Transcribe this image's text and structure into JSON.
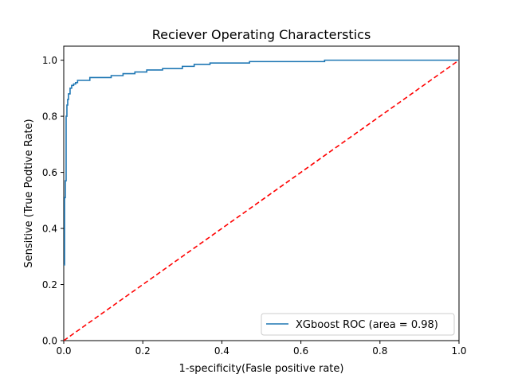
{
  "chart_data": {
    "type": "line",
    "title": "Reciever Operating Characterstics",
    "xlabel": "1-specificity(Fasle positive rate)",
    "ylabel": "Sensitive (True Podtive Rate)",
    "xlim": [
      0.0,
      1.0
    ],
    "ylim": [
      0.0,
      1.05
    ],
    "xticks": [
      0.0,
      0.2,
      0.4,
      0.6,
      0.8,
      1.0
    ],
    "yticks": [
      0.0,
      0.2,
      0.4,
      0.6,
      0.8,
      1.0
    ],
    "xtick_labels": [
      "0.0",
      "0.2",
      "0.4",
      "0.6",
      "0.8",
      "1.0"
    ],
    "ytick_labels": [
      "0.0",
      "0.2",
      "0.4",
      "0.6",
      "0.8",
      "1.0"
    ],
    "grid": false,
    "legend_position": "lower right",
    "series": [
      {
        "name": "XGboost ROC (area = 0.98)",
        "color": "#1f77b4",
        "style": "solid",
        "step": true,
        "x": [
          0.0,
          0.002,
          0.002,
          0.004,
          0.004,
          0.006,
          0.006,
          0.008,
          0.008,
          0.01,
          0.01,
          0.012,
          0.012,
          0.016,
          0.016,
          0.02,
          0.02,
          0.025,
          0.025,
          0.03,
          0.03,
          0.035,
          0.035,
          0.066,
          0.066,
          0.12,
          0.12,
          0.15,
          0.15,
          0.18,
          0.18,
          0.21,
          0.21,
          0.25,
          0.25,
          0.3,
          0.3,
          0.33,
          0.33,
          0.37,
          0.37,
          0.47,
          0.47,
          0.66,
          0.66,
          1.0
        ],
        "y": [
          0.27,
          0.27,
          0.51,
          0.51,
          0.57,
          0.57,
          0.8,
          0.8,
          0.84,
          0.84,
          0.86,
          0.86,
          0.88,
          0.88,
          0.9,
          0.9,
          0.91,
          0.91,
          0.915,
          0.915,
          0.92,
          0.92,
          0.928,
          0.928,
          0.938,
          0.938,
          0.945,
          0.945,
          0.952,
          0.952,
          0.958,
          0.958,
          0.965,
          0.965,
          0.97,
          0.97,
          0.978,
          0.978,
          0.985,
          0.985,
          0.99,
          0.99,
          0.995,
          0.995,
          1.0,
          1.0
        ]
      },
      {
        "name": "",
        "color": "#ff0000",
        "style": "dashed",
        "step": false,
        "x": [
          0.0,
          1.0
        ],
        "y": [
          0.0,
          1.0
        ]
      }
    ]
  }
}
